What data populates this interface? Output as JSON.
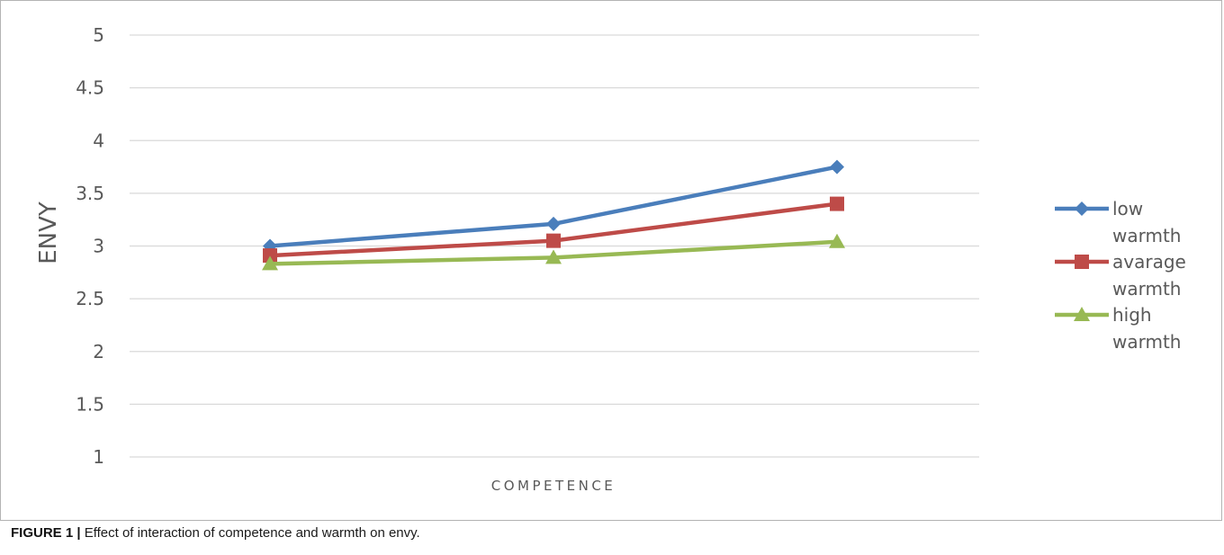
{
  "chart_data": {
    "type": "line",
    "xlabel": "COMPETENCE",
    "ylabel": "ENVY",
    "x": [
      1,
      2,
      3
    ],
    "ylim": [
      1,
      5
    ],
    "yticks": [
      "1",
      "1.5",
      "2",
      "2.5",
      "3",
      "3.5",
      "4",
      "4.5",
      "5"
    ],
    "grid": true,
    "legend_position": "right",
    "series": [
      {
        "name": "low warmth",
        "legend_lines": [
          "low",
          "warmth"
        ],
        "values": [
          3.0,
          3.21,
          3.75
        ],
        "color": "#4a7ebb",
        "marker": "diamond"
      },
      {
        "name": "avarage warmth",
        "legend_lines": [
          "avarage",
          "warmth"
        ],
        "values": [
          2.91,
          3.05,
          3.4
        ],
        "color": "#be4b48",
        "marker": "square"
      },
      {
        "name": "high warmth",
        "legend_lines": [
          "high",
          "warmth"
        ],
        "values": [
          2.83,
          2.89,
          3.04
        ],
        "color": "#98b954",
        "marker": "triangle"
      }
    ]
  },
  "caption": {
    "label": "FIGURE 1 |",
    "text": " Effect of interaction of competence and warmth on envy."
  }
}
